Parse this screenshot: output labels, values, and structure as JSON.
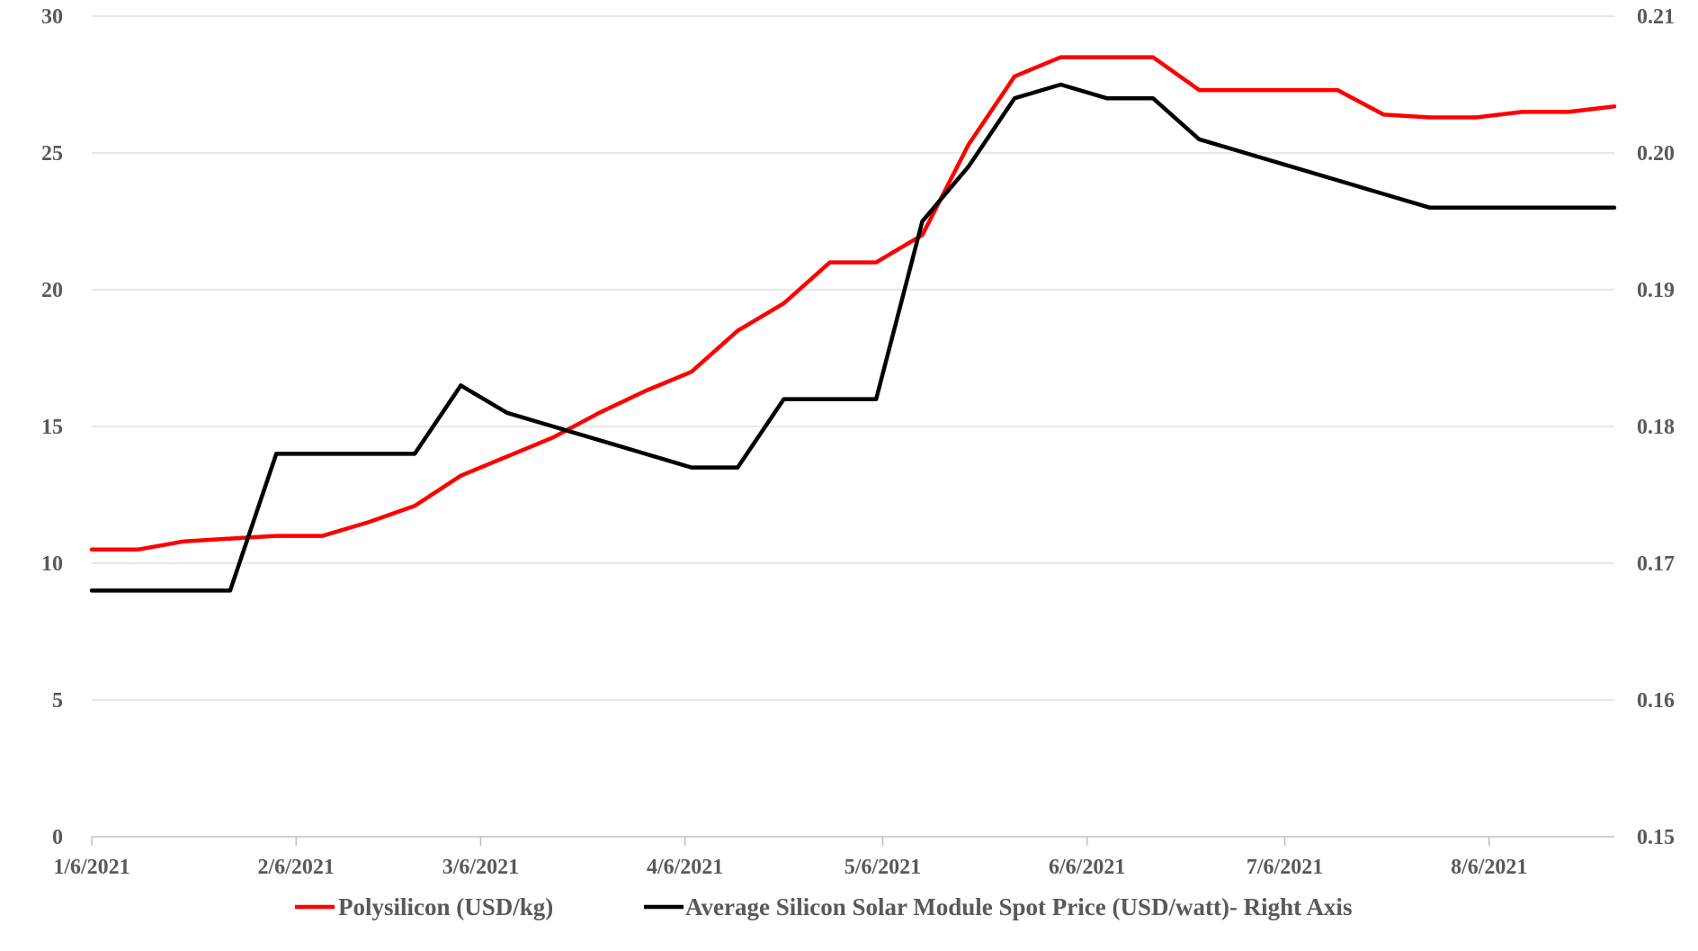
{
  "chart_data": {
    "type": "line",
    "x_dates": [
      "2021-01-06",
      "2021-01-13",
      "2021-01-20",
      "2021-01-27",
      "2021-02-03",
      "2021-02-10",
      "2021-02-17",
      "2021-02-24",
      "2021-03-03",
      "2021-03-10",
      "2021-03-17",
      "2021-03-24",
      "2021-03-31",
      "2021-04-07",
      "2021-04-14",
      "2021-04-21",
      "2021-04-28",
      "2021-05-05",
      "2021-05-12",
      "2021-05-19",
      "2021-05-26",
      "2021-06-02",
      "2021-06-09",
      "2021-06-16",
      "2021-06-23",
      "2021-06-30",
      "2021-07-07",
      "2021-07-14",
      "2021-07-21",
      "2021-07-28",
      "2021-08-04",
      "2021-08-11",
      "2021-08-18",
      "2021-08-25"
    ],
    "x_tick_labels": [
      "1/6/2021",
      "2/6/2021",
      "3/6/2021",
      "4/6/2021",
      "5/6/2021",
      "6/6/2021",
      "7/6/2021",
      "8/6/2021"
    ],
    "x_tick_dates": [
      "2021-01-06",
      "2021-02-06",
      "2021-03-06",
      "2021-04-06",
      "2021-05-06",
      "2021-06-06",
      "2021-07-06",
      "2021-08-06"
    ],
    "y_left_ticks": [
      "0",
      "5",
      "10",
      "15",
      "20",
      "25",
      "30"
    ],
    "y_left_lim": [
      0,
      30
    ],
    "y_right_ticks": [
      "0.15",
      "0.16",
      "0.17",
      "0.18",
      "0.19",
      "0.20",
      "0.21"
    ],
    "y_right_lim": [
      0.15,
      0.21
    ],
    "grid": true,
    "legend_position": "bottom",
    "series": [
      {
        "name": "Polysilicon (USD/kg)",
        "axis": "left",
        "color": "#ff0000",
        "values": [
          10.5,
          10.5,
          10.8,
          10.9,
          11.0,
          11.0,
          11.5,
          12.1,
          13.2,
          13.9,
          14.6,
          15.5,
          16.3,
          17.0,
          18.5,
          19.5,
          21.0,
          21.0,
          22.0,
          25.3,
          27.8,
          28.5,
          28.5,
          28.5,
          27.3,
          27.3,
          27.3,
          27.3,
          26.4,
          26.3,
          26.3,
          26.5,
          26.5,
          26.7
        ]
      },
      {
        "name": "Average Silicon Solar Module Spot Price (USD/watt)- Right Axis",
        "axis": "right",
        "color": "#000000",
        "values": [
          0.168,
          0.168,
          0.168,
          0.168,
          0.178,
          0.178,
          0.178,
          0.178,
          0.183,
          0.181,
          0.18,
          0.179,
          0.178,
          0.177,
          0.177,
          0.182,
          0.182,
          0.182,
          0.195,
          0.199,
          0.204,
          0.205,
          0.204,
          0.204,
          0.201,
          0.2,
          0.199,
          0.198,
          0.197,
          0.196,
          0.196,
          0.196,
          0.196,
          0.196
        ]
      }
    ]
  }
}
